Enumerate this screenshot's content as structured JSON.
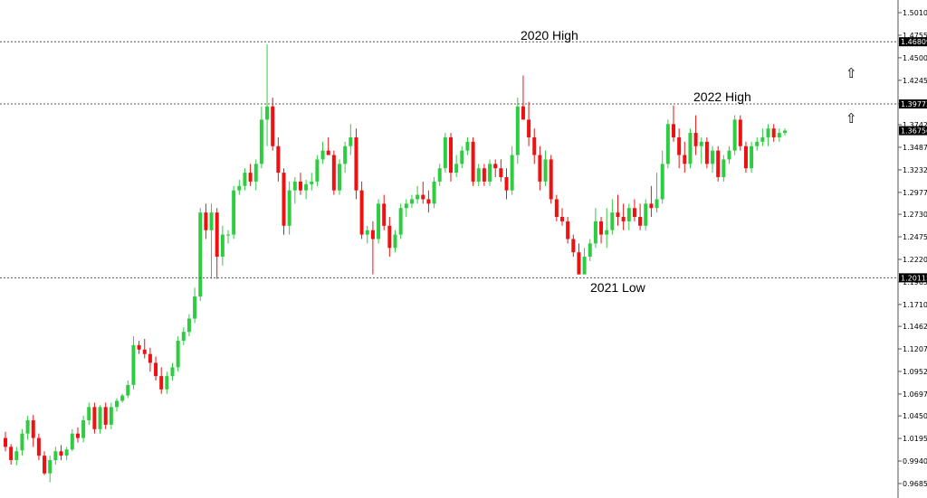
{
  "chart_data": {
    "type": "candlestick",
    "y_ticks": [
      "1.50100",
      "1.47550",
      "1.45000",
      "1.42450",
      "1.39775",
      "1.37425",
      "1.34875",
      "1.32325",
      "1.29775",
      "1.27300",
      "1.24750",
      "1.22200",
      "1.19650",
      "1.17100",
      "1.14625",
      "1.12075",
      "1.09525",
      "1.06975",
      "1.04500",
      "1.01950",
      "0.99400",
      "0.96850"
    ],
    "ylim": [
      0.9685,
      1.501
    ],
    "grid": false,
    "colors": {
      "up": "#2ecc40",
      "down": "#ee1111",
      "axis": "#555555",
      "level": "#555555"
    },
    "levels": [
      {
        "price": 1.46809,
        "label": "1.46809"
      },
      {
        "price": 1.39773,
        "label": "1.39773"
      },
      {
        "price": 1.20115,
        "label": "1.20115"
      }
    ],
    "current_price": {
      "price": 1.36756,
      "label": "1.36756"
    },
    "annotations": [
      "2020 High",
      "2022 High",
      "2021 Low"
    ],
    "arrow_icons": [
      "up-arrow-icon",
      "up-arrow-icon"
    ],
    "candles": [
      [
        1.02,
        1.027,
        1.005,
        1.01
      ],
      [
        1.01,
        1.013,
        0.99,
        0.995
      ],
      [
        0.995,
        1.01,
        0.989,
        1.005
      ],
      [
        1.006,
        1.03,
        1.0,
        1.025
      ],
      [
        1.025,
        1.045,
        1.018,
        1.04
      ],
      [
        1.04,
        1.046,
        1.01,
        1.02
      ],
      [
        1.02,
        1.025,
        0.995,
        1.0
      ],
      [
        1.0,
        1.005,
        0.978,
        0.98
      ],
      [
        0.98,
        1.0,
        0.97,
        0.995
      ],
      [
        0.995,
        1.01,
        0.99,
        1.005
      ],
      [
        1.005,
        1.012,
        0.995,
        1.0
      ],
      [
        1.0,
        1.01,
        0.995,
        1.007
      ],
      [
        1.007,
        1.03,
        1.005,
        1.025
      ],
      [
        1.025,
        1.032,
        1.015,
        1.02
      ],
      [
        1.02,
        1.045,
        1.015,
        1.04
      ],
      [
        1.04,
        1.06,
        1.035,
        1.055
      ],
      [
        1.055,
        1.06,
        1.025,
        1.03
      ],
      [
        1.03,
        1.057,
        1.025,
        1.055
      ],
      [
        1.055,
        1.06,
        1.03,
        1.035
      ],
      [
        1.035,
        1.06,
        1.03,
        1.055
      ],
      [
        1.055,
        1.065,
        1.05,
        1.062
      ],
      [
        1.062,
        1.07,
        1.06,
        1.068
      ],
      [
        1.068,
        1.085,
        1.065,
        1.08
      ],
      [
        1.08,
        1.135,
        1.075,
        1.125
      ],
      [
        1.125,
        1.13,
        1.115,
        1.12
      ],
      [
        1.12,
        1.132,
        1.11,
        1.115
      ],
      [
        1.115,
        1.122,
        1.095,
        1.105
      ],
      [
        1.105,
        1.112,
        1.085,
        1.09
      ],
      [
        1.09,
        1.1,
        1.07,
        1.075
      ],
      [
        1.075,
        1.095,
        1.07,
        1.09
      ],
      [
        1.09,
        1.105,
        1.085,
        1.1
      ],
      [
        1.1,
        1.135,
        1.095,
        1.13
      ],
      [
        1.13,
        1.145,
        1.125,
        1.14
      ],
      [
        1.14,
        1.16,
        1.135,
        1.155
      ],
      [
        1.155,
        1.19,
        1.15,
        1.18
      ],
      [
        1.18,
        1.28,
        1.175,
        1.275
      ],
      [
        1.275,
        1.285,
        1.245,
        1.255
      ],
      [
        1.255,
        1.285,
        1.2,
        1.275
      ],
      [
        1.275,
        1.28,
        1.2,
        1.225
      ],
      [
        1.225,
        1.26,
        1.215,
        1.25
      ],
      [
        1.25,
        1.255,
        1.24,
        1.25
      ],
      [
        1.25,
        1.305,
        1.245,
        1.3
      ],
      [
        1.3,
        1.312,
        1.295,
        1.305
      ],
      [
        1.305,
        1.325,
        1.3,
        1.32
      ],
      [
        1.32,
        1.33,
        1.305,
        1.31
      ],
      [
        1.31,
        1.335,
        1.3,
        1.33
      ],
      [
        1.33,
        1.395,
        1.325,
        1.38
      ],
      [
        1.38,
        1.465,
        1.35,
        1.395
      ],
      [
        1.395,
        1.405,
        1.345,
        1.35
      ],
      [
        1.35,
        1.36,
        1.31,
        1.32
      ],
      [
        1.32,
        1.325,
        1.25,
        1.26
      ],
      [
        1.26,
        1.31,
        1.25,
        1.3
      ],
      [
        1.3,
        1.315,
        1.285,
        1.31
      ],
      [
        1.31,
        1.32,
        1.295,
        1.3
      ],
      [
        1.3,
        1.312,
        1.29,
        1.307
      ],
      [
        1.307,
        1.32,
        1.3,
        1.31
      ],
      [
        1.31,
        1.34,
        1.305,
        1.335
      ],
      [
        1.335,
        1.355,
        1.33,
        1.345
      ],
      [
        1.345,
        1.36,
        1.34,
        1.34
      ],
      [
        1.34,
        1.345,
        1.295,
        1.3
      ],
      [
        1.3,
        1.335,
        1.295,
        1.33
      ],
      [
        1.33,
        1.355,
        1.32,
        1.35
      ],
      [
        1.35,
        1.375,
        1.34,
        1.36
      ],
      [
        1.36,
        1.37,
        1.29,
        1.3
      ],
      [
        1.3,
        1.31,
        1.245,
        1.25
      ],
      [
        1.25,
        1.26,
        1.24,
        1.255
      ],
      [
        1.255,
        1.265,
        1.205,
        1.245
      ],
      [
        1.245,
        1.29,
        1.24,
        1.285
      ],
      [
        1.285,
        1.295,
        1.255,
        1.26
      ],
      [
        1.26,
        1.27,
        1.225,
        1.235
      ],
      [
        1.235,
        1.255,
        1.23,
        1.25
      ],
      [
        1.25,
        1.285,
        1.245,
        1.28
      ],
      [
        1.28,
        1.29,
        1.27,
        1.285
      ],
      [
        1.285,
        1.295,
        1.28,
        1.29
      ],
      [
        1.29,
        1.305,
        1.285,
        1.295
      ],
      [
        1.295,
        1.31,
        1.285,
        1.29
      ],
      [
        1.29,
        1.3,
        1.275,
        1.285
      ],
      [
        1.285,
        1.315,
        1.28,
        1.31
      ],
      [
        1.31,
        1.33,
        1.305,
        1.325
      ],
      [
        1.325,
        1.365,
        1.32,
        1.36
      ],
      [
        1.36,
        1.365,
        1.31,
        1.32
      ],
      [
        1.32,
        1.34,
        1.315,
        1.33
      ],
      [
        1.33,
        1.35,
        1.325,
        1.345
      ],
      [
        1.345,
        1.36,
        1.34,
        1.355
      ],
      [
        1.355,
        1.36,
        1.305,
        1.31
      ],
      [
        1.31,
        1.33,
        1.305,
        1.325
      ],
      [
        1.325,
        1.33,
        1.305,
        1.31
      ],
      [
        1.31,
        1.335,
        1.305,
        1.33
      ],
      [
        1.33,
        1.335,
        1.315,
        1.325
      ],
      [
        1.325,
        1.335,
        1.31,
        1.315
      ],
      [
        1.315,
        1.325,
        1.29,
        1.3
      ],
      [
        1.3,
        1.35,
        1.295,
        1.34
      ],
      [
        1.34,
        1.405,
        1.33,
        1.395
      ],
      [
        1.395,
        1.43,
        1.385,
        1.38
      ],
      [
        1.38,
        1.4,
        1.35,
        1.36
      ],
      [
        1.36,
        1.37,
        1.33,
        1.34
      ],
      [
        1.34,
        1.35,
        1.3,
        1.31
      ],
      [
        1.31,
        1.345,
        1.305,
        1.335
      ],
      [
        1.335,
        1.34,
        1.285,
        1.29
      ],
      [
        1.29,
        1.295,
        1.265,
        1.27
      ],
      [
        1.27,
        1.28,
        1.26,
        1.265
      ],
      [
        1.265,
        1.27,
        1.24,
        1.245
      ],
      [
        1.245,
        1.25,
        1.225,
        1.23
      ],
      [
        1.23,
        1.24,
        1.205,
        1.205
      ],
      [
        1.205,
        1.235,
        1.205,
        1.225
      ],
      [
        1.225,
        1.245,
        1.22,
        1.24
      ],
      [
        1.24,
        1.28,
        1.235,
        1.265
      ],
      [
        1.265,
        1.27,
        1.24,
        1.25
      ],
      [
        1.25,
        1.28,
        1.235,
        1.255
      ],
      [
        1.255,
        1.29,
        1.25,
        1.275
      ],
      [
        1.275,
        1.295,
        1.26,
        1.27
      ],
      [
        1.27,
        1.285,
        1.255,
        1.265
      ],
      [
        1.265,
        1.285,
        1.255,
        1.28
      ],
      [
        1.28,
        1.29,
        1.265,
        1.27
      ],
      [
        1.27,
        1.285,
        1.255,
        1.26
      ],
      [
        1.26,
        1.29,
        1.255,
        1.285
      ],
      [
        1.285,
        1.305,
        1.27,
        1.28
      ],
      [
        1.28,
        1.32,
        1.275,
        1.29
      ],
      [
        1.29,
        1.345,
        1.285,
        1.33
      ],
      [
        1.33,
        1.38,
        1.325,
        1.375
      ],
      [
        1.375,
        1.396,
        1.355,
        1.36
      ],
      [
        1.36,
        1.37,
        1.325,
        1.34
      ],
      [
        1.34,
        1.355,
        1.32,
        1.33
      ],
      [
        1.33,
        1.37,
        1.325,
        1.365
      ],
      [
        1.365,
        1.385,
        1.34,
        1.35
      ],
      [
        1.35,
        1.36,
        1.33,
        1.355
      ],
      [
        1.355,
        1.36,
        1.325,
        1.33
      ],
      [
        1.33,
        1.35,
        1.32,
        1.345
      ],
      [
        1.345,
        1.35,
        1.31,
        1.315
      ],
      [
        1.315,
        1.34,
        1.31,
        1.335
      ],
      [
        1.335,
        1.35,
        1.33,
        1.345
      ],
      [
        1.345,
        1.385,
        1.34,
        1.38
      ],
      [
        1.38,
        1.385,
        1.345,
        1.35
      ],
      [
        1.35,
        1.355,
        1.32,
        1.325
      ],
      [
        1.325,
        1.355,
        1.32,
        1.35
      ],
      [
        1.35,
        1.36,
        1.345,
        1.355
      ],
      [
        1.355,
        1.37,
        1.35,
        1.36
      ],
      [
        1.36,
        1.375,
        1.35,
        1.37
      ],
      [
        1.37,
        1.375,
        1.355,
        1.36
      ],
      [
        1.36,
        1.37,
        1.355,
        1.365
      ],
      [
        1.365,
        1.37,
        1.362,
        1.3676
      ]
    ]
  }
}
